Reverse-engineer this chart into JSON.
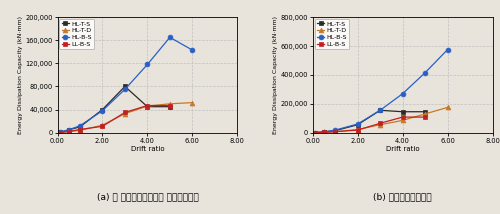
{
  "left": {
    "title": "(a) 각 층간변위각에서의 에너지소산량",
    "ylabel": "Energy Dissipation Capacity (kN·mm)",
    "xlabel": "Drift ratio",
    "ylim": [
      0,
      200000
    ],
    "xlim": [
      0.0,
      8.0
    ],
    "yticks": [
      0,
      40000,
      80000,
      120000,
      160000,
      200000
    ],
    "xticks": [
      0.0,
      2.0,
      4.0,
      6.0,
      8.0
    ],
    "series": {
      "HL-T-S": {
        "x": [
          0.1,
          0.5,
          1.0,
          2.0,
          3.0,
          4.0,
          5.0
        ],
        "y": [
          500,
          5000,
          10000,
          40000,
          80000,
          45000,
          45000
        ],
        "color": "#2a2a2a",
        "marker": "s",
        "linestyle": "-"
      },
      "HL-T-D": {
        "x": [
          0.1,
          0.5,
          1.0,
          2.0,
          3.0,
          4.0,
          5.0,
          6.0
        ],
        "y": [
          300,
          2000,
          4000,
          13000,
          33000,
          46000,
          50000,
          52000
        ],
        "color": "#c87828",
        "marker": "^",
        "linestyle": "-"
      },
      "HL-B-S": {
        "x": [
          0.1,
          0.5,
          1.0,
          2.0,
          3.0,
          4.0,
          5.0,
          6.0
        ],
        "y": [
          500,
          5000,
          12000,
          38000,
          75000,
          118000,
          165000,
          143000
        ],
        "color": "#2860c8",
        "marker": "o",
        "linestyle": "-"
      },
      "LL-B-S": {
        "x": [
          0.1,
          0.5,
          1.0,
          2.0,
          3.0,
          4.0,
          5.0
        ],
        "y": [
          200,
          2000,
          5500,
          11000,
          35000,
          47000,
          47000
        ],
        "color": "#c02020",
        "marker": "s",
        "linestyle": "-"
      }
    }
  },
  "right": {
    "title": "(b) 누적에너지소산량",
    "ylabel": "Energy Dissipation Capacity (kN·mm)",
    "xlabel": "Drift ratio",
    "ylim": [
      0,
      800000
    ],
    "xlim": [
      0.0,
      8.0
    ],
    "yticks": [
      0,
      200000,
      400000,
      600000,
      800000
    ],
    "xticks": [
      0.0,
      2.0,
      4.0,
      6.0,
      8.0
    ],
    "series": {
      "HL-T-S": {
        "x": [
          0.1,
          0.5,
          1.0,
          2.0,
          3.0,
          4.0,
          5.0
        ],
        "y": [
          500,
          5000,
          14000,
          55000,
          155000,
          145000,
          145000
        ],
        "color": "#2a2a2a",
        "marker": "s",
        "linestyle": "-"
      },
      "HL-T-D": {
        "x": [
          0.1,
          0.5,
          1.0,
          2.0,
          3.0,
          4.0,
          5.0,
          6.0
        ],
        "y": [
          300,
          2500,
          7000,
          22000,
          55000,
          85000,
          130000,
          175000
        ],
        "color": "#c87828",
        "marker": "^",
        "linestyle": "-"
      },
      "HL-B-S": {
        "x": [
          0.1,
          0.5,
          1.0,
          2.0,
          3.0,
          4.0,
          5.0,
          6.0
        ],
        "y": [
          500,
          6000,
          18000,
          60000,
          155000,
          270000,
          415000,
          575000
        ],
        "color": "#2860c8",
        "marker": "o",
        "linestyle": "-"
      },
      "LL-B-S": {
        "x": [
          0.1,
          0.5,
          1.0,
          2.0,
          3.0,
          4.0,
          5.0
        ],
        "y": [
          200,
          2000,
          7000,
          18000,
          65000,
          108000,
          108000
        ],
        "color": "#c02020",
        "marker": "s",
        "linestyle": "-"
      }
    }
  },
  "fig_bg": "#e8e4dc",
  "plot_bg": "#e8e4dc",
  "grid_color": "#b8b8b8",
  "font_size": 4.8,
  "title_fontsize": 6.5,
  "marker_size": 3.5,
  "linewidth": 0.9
}
